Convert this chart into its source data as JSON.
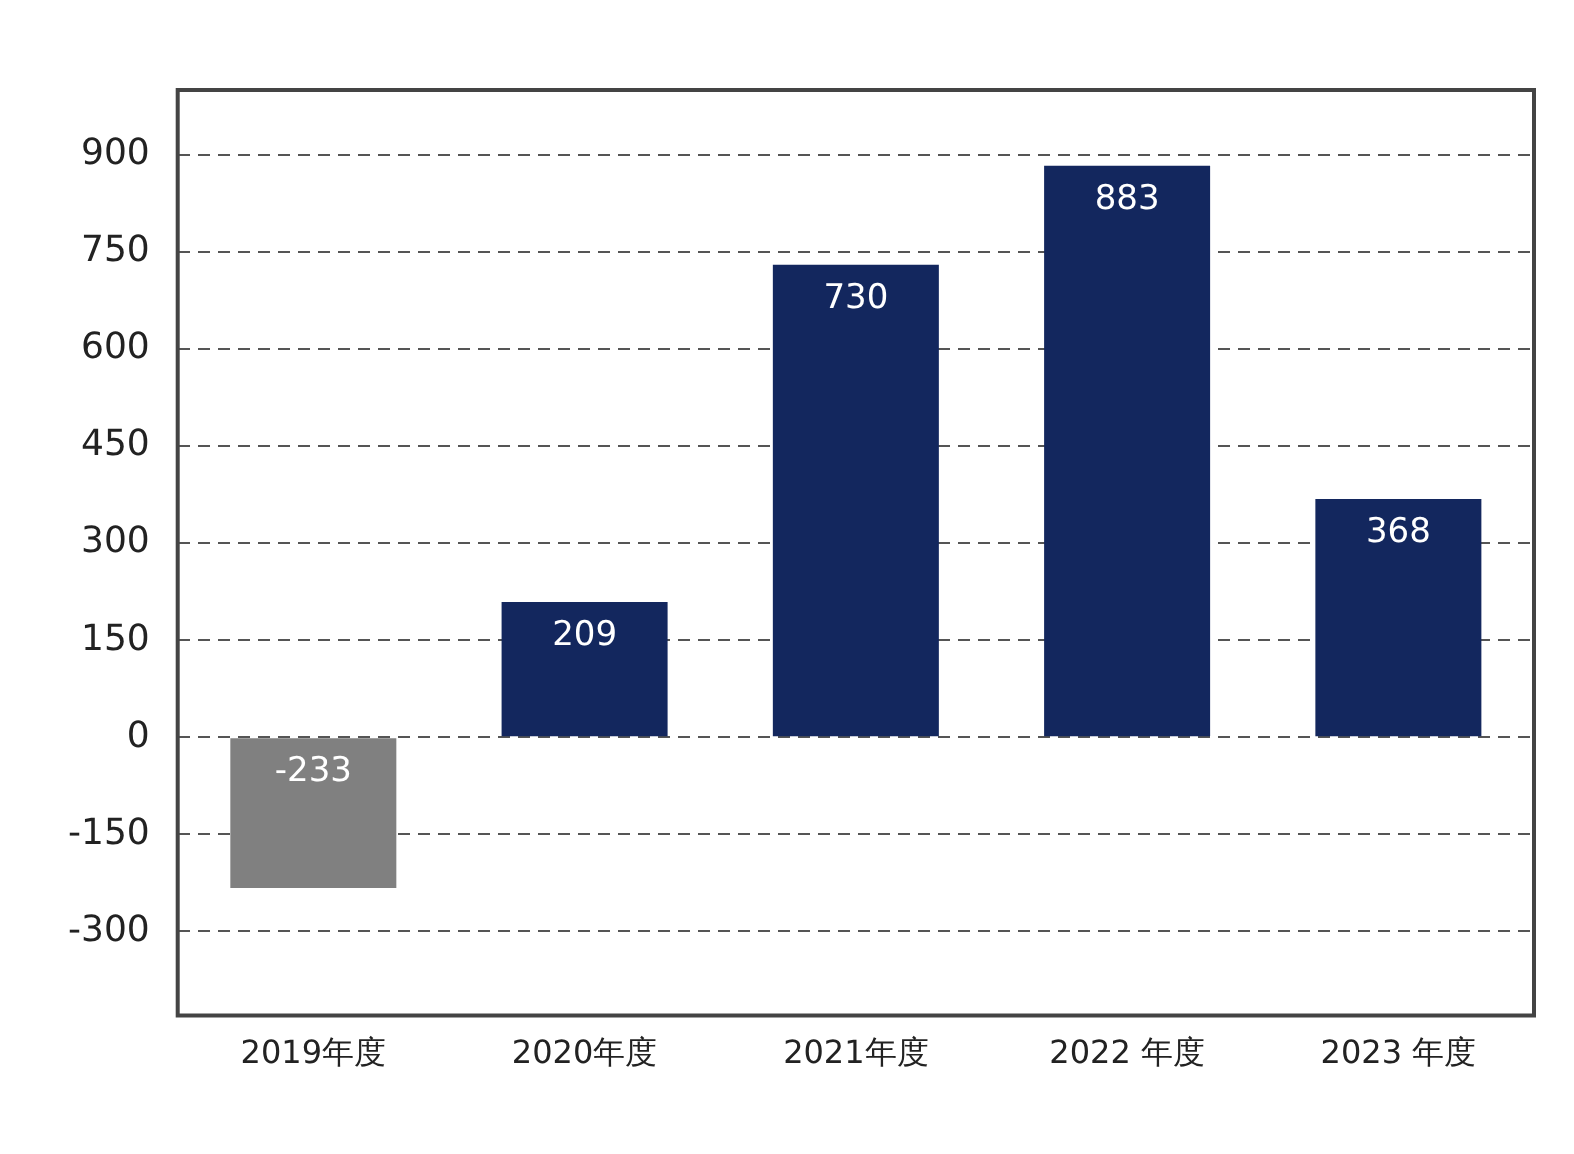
{
  "chart_data": {
    "type": "bar",
    "categories": [
      "2019年度",
      "2020年度",
      "2021年度",
      "2022 年度",
      "2023 年度"
    ],
    "values": [
      -233,
      209,
      730,
      883,
      368
    ],
    "colors": [
      "#808080",
      "#13275e",
      "#13275e",
      "#13275e",
      "#13275e"
    ],
    "ylim": [
      -430,
      1000
    ],
    "yticks": [
      -300,
      -150,
      0,
      150,
      300,
      450,
      600,
      750,
      900
    ],
    "grid": "y",
    "data_labels": true
  }
}
